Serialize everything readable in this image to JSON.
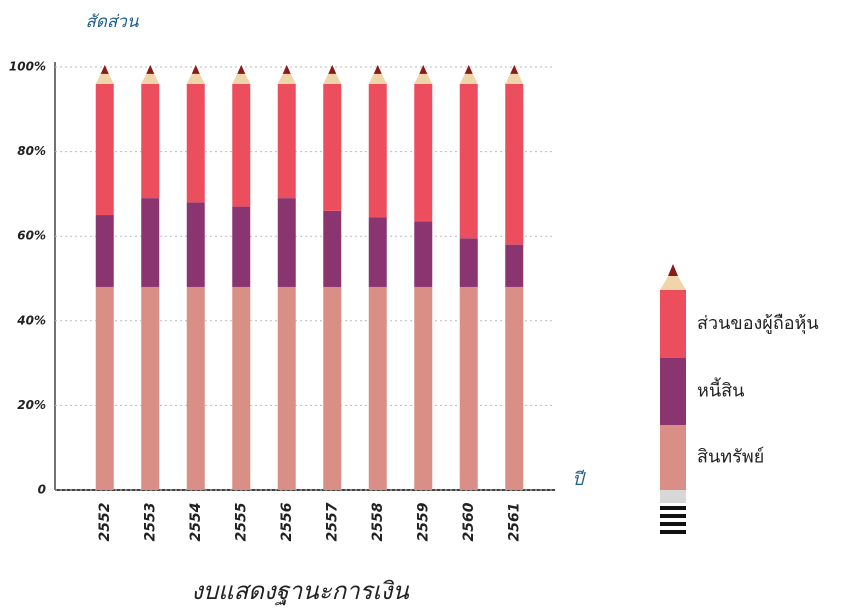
{
  "chart_data": {
    "type": "stacked_bar",
    "title": "งบแสดงฐานะการเงิน",
    "y_label": "สัดส่วน",
    "x_label": "ปี",
    "categories": [
      "2552",
      "2553",
      "2554",
      "2555",
      "2556",
      "2557",
      "2558",
      "2559",
      "2560",
      "2561"
    ],
    "series": [
      {
        "name": "สินทรัพย์",
        "color": "#d98f86",
        "values": [
          48,
          48,
          48,
          48,
          48,
          48,
          48,
          48,
          48,
          48
        ]
      },
      {
        "name": "หนี้สิน",
        "color": "#8a3470",
        "values": [
          17,
          21,
          20,
          19,
          21,
          18,
          16.5,
          15.5,
          11.5,
          10
        ]
      },
      {
        "name": "ส่วนของผู้ถือหุ้น",
        "color": "#ec4e5e",
        "values": [
          31,
          27,
          28,
          29,
          27,
          30,
          31.5,
          32.5,
          36.5,
          38
        ]
      }
    ],
    "ylim": [
      0,
      100
    ],
    "yticks": [
      0,
      {
        "value": 20,
        "label": "20%"
      },
      {
        "value": 40,
        "label": "40%"
      },
      {
        "value": 60,
        "label": "60%"
      },
      {
        "value": 80,
        "label": "80%"
      },
      {
        "value": 100,
        "label": "100%"
      }
    ],
    "grid": true
  }
}
